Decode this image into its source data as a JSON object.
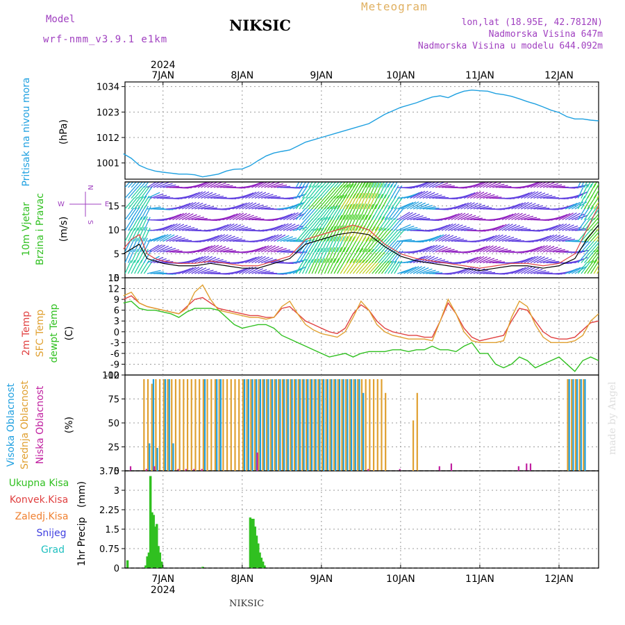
{
  "header": {
    "model_label": "Model",
    "model_name": "wrf-nmm_v3.9.1 e1km",
    "station": "NIKSIC",
    "meteogram": "Meteogram",
    "lonlat": "lon,lat (18.95E, 42.7812N)",
    "altitude": "Nadmorska Visina 647m",
    "model_altitude": "Nadmorska Visina u modelu 644.092m"
  },
  "footer": {
    "station": "NIKSIC",
    "credit": "made by Angel"
  },
  "time_axis": {
    "year": "2024",
    "days": [
      "7JAN",
      "8JAN",
      "9JAN",
      "10JAN",
      "11JAN",
      "12JAN"
    ]
  },
  "colors": {
    "pressure": "#1ea0e0",
    "temp2m": "#e04040",
    "sfc": "#e0a030",
    "dewpt": "#30c020",
    "high_cloud": "#20a0e0",
    "mid_cloud": "#e0a030",
    "low_cloud": "#c020a0",
    "precip_total": "#30c020",
    "purple": "#a040c0"
  },
  "chart_data": [
    {
      "type": "line",
      "panel": "pressure",
      "ylabel": "Pritisak na nivou mora",
      "unit": "(hPa)",
      "yticks": [
        1001,
        1012,
        1023,
        1034
      ],
      "ylim": [
        994,
        1036
      ],
      "x": [
        6.5,
        6.6,
        6.7,
        6.8,
        6.9,
        7.0,
        7.1,
        7.2,
        7.3,
        7.4,
        7.5,
        7.6,
        7.7,
        7.8,
        7.9,
        8.0,
        8.1,
        8.2,
        8.3,
        8.4,
        8.5,
        8.6,
        8.7,
        8.8,
        9.0,
        9.2,
        9.4,
        9.6,
        9.8,
        10.0,
        10.2,
        10.3,
        10.4,
        10.5,
        10.6,
        10.7,
        10.8,
        10.9,
        11.0,
        11.1,
        11.2,
        11.3,
        11.4,
        11.5,
        11.6,
        11.7,
        11.8,
        11.9,
        12.0,
        12.1,
        12.2,
        12.3,
        12.4,
        12.5
      ],
      "values": [
        1005,
        1003,
        1000,
        998.5,
        997.5,
        997,
        996.6,
        996.2,
        996.2,
        995.9,
        995,
        995.6,
        996.2,
        997.5,
        998.3,
        998.4,
        999.8,
        1002,
        1004,
        1005.3,
        1006,
        1006.6,
        1008.3,
        1010,
        1012,
        1014,
        1016,
        1018,
        1022,
        1025,
        1027,
        1028.3,
        1029.5,
        1030,
        1029.2,
        1030.8,
        1032,
        1032.5,
        1032.2,
        1032,
        1031,
        1030.5,
        1029.8,
        1028.7,
        1027.5,
        1026.5,
        1025.2,
        1023.8,
        1022.8,
        1021,
        1020,
        1020,
        1019.5,
        1019.2
      ]
    },
    {
      "type": "line",
      "panel": "wind",
      "ylabel_lines": [
        "10m Vjetar",
        "Brzina i Pravac"
      ],
      "unit": "(m/s)",
      "compass": {
        "n": "N",
        "s": "S",
        "e": "E",
        "w": "W"
      },
      "yticks": [
        0,
        5,
        10,
        15
      ],
      "ylim": [
        0,
        20
      ],
      "x": [
        6.5,
        6.6,
        6.7,
        6.8,
        6.9,
        7.0,
        7.2,
        7.4,
        7.6,
        7.8,
        8.0,
        8.2,
        8.4,
        8.6,
        8.8,
        9.0,
        9.2,
        9.4,
        9.6,
        9.8,
        10.0,
        10.2,
        10.4,
        10.6,
        10.8,
        11.0,
        11.2,
        11.4,
        11.6,
        11.8,
        12.0,
        12.2,
        12.35,
        12.5
      ],
      "values": [
        5,
        6,
        7,
        4,
        3.5,
        3,
        2.5,
        2.5,
        3,
        2.5,
        2,
        2,
        3,
        4,
        7,
        8,
        9,
        9.5,
        9,
        6.5,
        4.5,
        3.5,
        3,
        2.5,
        2,
        1.5,
        2,
        2.5,
        2.5,
        2,
        2.5,
        4,
        8,
        11
      ],
      "gust": [
        6,
        8,
        9,
        5,
        4,
        3.5,
        3,
        3,
        3.5,
        3,
        2.5,
        2.5,
        3.5,
        4.5,
        8,
        9,
        10,
        11,
        10,
        7,
        5,
        4,
        3.5,
        3,
        2.5,
        2,
        2.5,
        3,
        3,
        2.5,
        3,
        5,
        10,
        15
      ]
    },
    {
      "type": "line",
      "panel": "temperature",
      "ylabel_lines": [
        "2m Temp",
        "SFC Temp",
        "dewpt Temp"
      ],
      "unit": "(C)",
      "yticks": [
        -12,
        -9,
        -6,
        -3,
        0,
        3,
        6,
        9,
        12,
        15
      ],
      "ylim": [
        -12,
        15
      ],
      "x": [
        6.5,
        6.6,
        6.7,
        6.8,
        6.9,
        7.0,
        7.1,
        7.2,
        7.3,
        7.4,
        7.5,
        7.6,
        7.7,
        7.8,
        7.9,
        8.0,
        8.1,
        8.2,
        8.3,
        8.4,
        8.5,
        8.6,
        8.7,
        8.8,
        8.9,
        9.0,
        9.1,
        9.2,
        9.3,
        9.4,
        9.5,
        9.6,
        9.7,
        9.8,
        9.9,
        10.0,
        10.1,
        10.2,
        10.3,
        10.4,
        10.5,
        10.6,
        10.7,
        10.8,
        10.9,
        11.0,
        11.1,
        11.2,
        11.3,
        11.4,
        11.5,
        11.6,
        11.7,
        11.8,
        11.9,
        12.0,
        12.1,
        12.2,
        12.3,
        12.4,
        12.5
      ],
      "series": [
        {
          "name": "2m Temp",
          "values": [
            9,
            10,
            8,
            7,
            6.5,
            6,
            5.5,
            5,
            7,
            9,
            9.5,
            8,
            6.5,
            6,
            5.5,
            5,
            4.5,
            4.5,
            4,
            4,
            6.5,
            7,
            5,
            3,
            2,
            1,
            0,
            -0.5,
            1,
            5,
            7.5,
            6,
            3,
            1,
            0,
            -0.5,
            -1,
            -1,
            -1.5,
            -1.5,
            3,
            8,
            5,
            1,
            -1.5,
            -2.5,
            -2,
            -1.5,
            -1,
            3,
            6.5,
            6,
            3,
            0,
            -1.5,
            -2,
            -2,
            -1.5,
            0.5,
            2.5,
            3
          ]
        },
        {
          "name": "SFC Temp",
          "values": [
            10,
            11,
            8,
            7,
            6.5,
            6,
            5.5,
            5,
            6.5,
            11,
            13,
            9,
            6,
            5.5,
            5,
            4.5,
            4,
            4,
            3.5,
            4,
            7,
            8.5,
            5,
            2,
            0.5,
            -0.5,
            -1,
            -1.5,
            0,
            4,
            8.5,
            6,
            2,
            0,
            -1,
            -1.5,
            -2,
            -2,
            -2,
            -2.5,
            3,
            9,
            5,
            0,
            -2.5,
            -3,
            -3,
            -3,
            -2.5,
            4,
            8.5,
            7,
            2,
            -1.5,
            -3,
            -3,
            -3,
            -2.5,
            -1,
            3,
            5
          ]
        },
        {
          "name": "dewpt Temp",
          "values": [
            8,
            8.5,
            6.5,
            6,
            6,
            5.5,
            5,
            4,
            5.5,
            6.5,
            6.5,
            6.5,
            6,
            4,
            2,
            1,
            1.5,
            2,
            2,
            1,
            -1,
            -2,
            -3,
            -4,
            -5,
            -6,
            -7,
            -6.5,
            -6,
            -7,
            -6,
            -5.5,
            -5.5,
            -5.5,
            -5,
            -5,
            -5.5,
            -5,
            -5,
            -4,
            -5,
            -5,
            -5.5,
            -4,
            -3,
            -6,
            -6,
            -9,
            -10,
            -9,
            -7,
            -8,
            -10,
            -9,
            -8,
            -7,
            -9,
            -11,
            -8,
            -7,
            -8
          ]
        }
      ]
    },
    {
      "type": "bar",
      "panel": "cloud",
      "ylabel_lines": [
        "Visoka Oblacnost",
        "Srednja Oblacnost",
        "Niska Oblacnost"
      ],
      "unit": "(%)",
      "yticks": [
        0,
        25,
        50,
        75,
        100
      ],
      "ylim": [
        0,
        100
      ],
      "high": {
        "x": [
          6.8,
          6.85,
          6.9,
          7.0,
          7.05,
          7.1,
          7.5,
          7.65,
          7.7,
          8.0,
          8.05,
          8.1,
          8.15,
          8.2,
          8.25,
          8.3,
          8.35,
          8.4,
          8.45,
          8.5,
          8.55,
          8.6,
          8.65,
          8.7,
          8.75,
          8.8,
          8.85,
          8.9,
          8.95,
          9.0,
          9.05,
          9.1,
          9.15,
          9.2,
          9.25,
          9.3,
          9.35,
          9.4,
          9.45,
          9.5,
          12.1,
          12.15,
          12.2,
          12.25,
          12.3
        ],
        "values": [
          30,
          100,
          25,
          100,
          100,
          30,
          100,
          100,
          100,
          100,
          100,
          100,
          100,
          100,
          100,
          100,
          100,
          100,
          100,
          100,
          100,
          100,
          100,
          100,
          100,
          100,
          100,
          100,
          100,
          100,
          100,
          100,
          100,
          100,
          100,
          100,
          100,
          100,
          100,
          85,
          100,
          100,
          100,
          100,
          100
        ]
      },
      "mid": {
        "x": [
          6.75,
          6.8,
          6.85,
          6.9,
          6.95,
          7.0,
          7.05,
          7.1,
          7.15,
          7.2,
          7.25,
          7.3,
          7.35,
          7.4,
          7.45,
          7.5,
          7.55,
          7.6,
          7.65,
          7.7,
          7.75,
          7.8,
          7.85,
          7.9,
          7.95,
          8.0,
          8.05,
          8.1,
          8.15,
          8.2,
          8.25,
          8.3,
          8.35,
          8.4,
          8.45,
          8.5,
          8.55,
          8.6,
          8.65,
          8.7,
          8.75,
          8.8,
          8.85,
          8.9,
          8.95,
          9.0,
          9.05,
          9.1,
          9.15,
          9.2,
          9.25,
          9.3,
          9.35,
          9.4,
          9.45,
          9.5,
          9.55,
          9.6,
          9.65,
          9.7,
          9.75,
          9.8,
          10.15,
          10.2,
          12.1,
          12.15,
          12.2,
          12.25,
          12.3
        ],
        "values": [
          100,
          100,
          95,
          100,
          100,
          100,
          100,
          100,
          100,
          100,
          100,
          100,
          100,
          100,
          100,
          100,
          100,
          100,
          100,
          100,
          100,
          100,
          100,
          100,
          100,
          100,
          100,
          100,
          100,
          100,
          100,
          100,
          100,
          100,
          100,
          100,
          100,
          100,
          100,
          100,
          100,
          100,
          100,
          100,
          100,
          100,
          100,
          100,
          100,
          100,
          100,
          100,
          100,
          100,
          100,
          100,
          100,
          100,
          100,
          100,
          100,
          85,
          55,
          85,
          100,
          100,
          100,
          100,
          100
        ]
      },
      "low": {
        "x": [
          6.6,
          6.8,
          6.9,
          7.2,
          7.3,
          7.4,
          7.5,
          8.2,
          9.6,
          10.0,
          10.5,
          10.65,
          11.5,
          11.6,
          11.65
        ],
        "values": [
          5,
          2,
          5,
          2,
          2,
          2,
          2,
          20,
          2,
          2,
          5,
          8,
          5,
          8,
          8
        ]
      }
    },
    {
      "type": "bar",
      "panel": "precip",
      "ylabel_lines": [
        "1hr Precip",
        "(mm)"
      ],
      "legend": [
        "Ukupna Kisa",
        "Konvek.Kisa",
        "Zaledj.Kisa",
        "Snijeg",
        "Grad"
      ],
      "yticks": [
        0,
        0.75,
        1.5,
        2.25,
        3,
        3.75
      ],
      "ylim": [
        0,
        3.75
      ],
      "x": [
        6.55,
        6.78,
        6.8,
        6.82,
        6.84,
        6.86,
        6.88,
        6.9,
        6.92,
        6.94,
        6.96,
        6.98,
        7.5,
        8.1,
        8.12,
        8.14,
        8.16,
        8.18,
        8.2,
        8.22,
        8.24,
        8.26,
        8.28
      ],
      "values": [
        0.3,
        0.1,
        0.45,
        0.6,
        3.55,
        2.15,
        2.05,
        1.6,
        1.7,
        0.85,
        0.6,
        0.25,
        0.05,
        1.95,
        1.9,
        1.9,
        1.6,
        1.25,
        0.95,
        0.6,
        0.4,
        0.25,
        0.1
      ]
    }
  ]
}
